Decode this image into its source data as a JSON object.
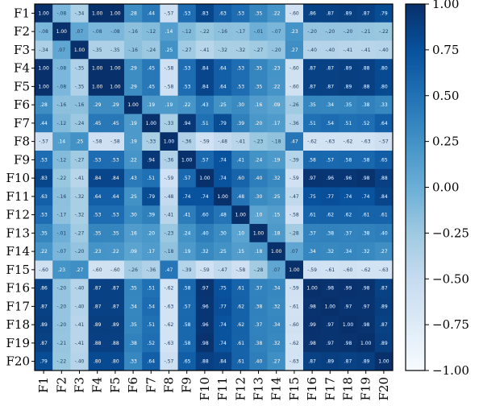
{
  "chart_data": {
    "type": "heatmap",
    "row_labels": [
      "F1",
      "F2",
      "F3",
      "F4",
      "F5",
      "F6",
      "F7",
      "F8",
      "F9",
      "F10",
      "F11",
      "F12",
      "F13",
      "F14",
      "F15",
      "F16",
      "F17",
      "F18",
      "F19",
      "F20"
    ],
    "col_labels": [
      "F1",
      "F2",
      "F3",
      "F4",
      "F5",
      "F6",
      "F7",
      "F8",
      "F9",
      "F10",
      "F11",
      "F12",
      "F13",
      "F14",
      "F15",
      "F16",
      "F17",
      "F18",
      "F19",
      "F20"
    ],
    "values": [
      [
        1.0,
        -0.08,
        -0.34,
        1.0,
        1.0,
        0.28,
        0.44,
        -0.57,
        0.53,
        0.83,
        0.63,
        0.53,
        0.35,
        0.22,
        -0.6,
        0.86,
        0.87,
        0.89,
        0.87,
        0.79
      ],
      [
        -0.08,
        1.0,
        0.07,
        -0.08,
        -0.08,
        -0.16,
        -0.12,
        0.14,
        -0.12,
        -0.22,
        -0.16,
        -0.17,
        -0.01,
        -0.07,
        0.23,
        -0.2,
        -0.2,
        -0.2,
        -0.21,
        -0.22
      ],
      [
        -0.34,
        0.07,
        1.0,
        -0.35,
        -0.35,
        -0.16,
        -0.24,
        0.25,
        -0.27,
        -0.41,
        -0.32,
        -0.32,
        -0.27,
        -0.2,
        0.27,
        -0.4,
        -0.4,
        -0.41,
        -0.41,
        -0.4
      ],
      [
        1.0,
        -0.08,
        -0.35,
        1.0,
        1.0,
        0.29,
        0.45,
        -0.58,
        0.53,
        0.84,
        0.64,
        0.53,
        0.35,
        0.23,
        -0.6,
        0.87,
        0.87,
        0.89,
        0.88,
        0.8
      ],
      [
        1.0,
        -0.08,
        -0.35,
        1.0,
        1.0,
        0.29,
        0.45,
        -0.58,
        0.53,
        0.84,
        0.64,
        0.53,
        0.35,
        0.22,
        -0.6,
        0.87,
        0.87,
        0.89,
        0.88,
        0.8
      ],
      [
        0.28,
        -0.16,
        -0.16,
        0.29,
        0.29,
        1.0,
        0.19,
        0.19,
        0.22,
        0.43,
        0.25,
        0.3,
        0.16,
        0.09,
        -0.26,
        0.35,
        0.34,
        0.35,
        0.38,
        0.33
      ],
      [
        0.44,
        -0.12,
        -0.24,
        0.45,
        0.45,
        0.19,
        1.0,
        -0.33,
        0.94,
        0.51,
        0.79,
        0.39,
        0.2,
        0.17,
        -0.36,
        0.51,
        0.54,
        0.51,
        0.52,
        0.64
      ],
      [
        -0.57,
        0.14,
        0.25,
        -0.58,
        -0.58,
        0.19,
        -0.33,
        1.0,
        -0.36,
        -0.59,
        -0.48,
        -0.41,
        -0.23,
        -0.18,
        0.47,
        -0.62,
        -0.63,
        -0.62,
        -0.63,
        -0.57
      ],
      [
        0.53,
        -0.12,
        -0.27,
        0.53,
        0.53,
        0.22,
        0.94,
        -0.36,
        1.0,
        0.57,
        0.74,
        0.41,
        0.24,
        0.19,
        -0.39,
        0.58,
        0.57,
        0.58,
        0.58,
        0.65
      ],
      [
        0.83,
        -0.22,
        -0.41,
        0.84,
        0.84,
        0.43,
        0.51,
        -0.59,
        0.57,
        1.0,
        0.74,
        0.6,
        0.4,
        0.32,
        -0.59,
        0.97,
        0.96,
        0.96,
        0.98,
        0.88
      ],
      [
        0.63,
        -0.16,
        -0.32,
        0.64,
        0.64,
        0.25,
        0.79,
        -0.48,
        0.74,
        0.74,
        1.0,
        0.48,
        0.3,
        0.25,
        -0.47,
        0.75,
        0.77,
        0.74,
        0.74,
        0.84
      ],
      [
        0.53,
        -0.17,
        -0.32,
        0.53,
        0.53,
        0.3,
        0.39,
        -0.41,
        0.41,
        0.6,
        0.48,
        1.0,
        0.1,
        0.15,
        -0.58,
        0.61,
        0.62,
        0.62,
        0.61,
        0.61
      ],
      [
        0.35,
        -0.01,
        -0.27,
        0.35,
        0.35,
        0.16,
        0.2,
        -0.23,
        0.24,
        0.4,
        0.3,
        0.1,
        1.0,
        0.18,
        -0.28,
        0.37,
        0.38,
        0.37,
        0.38,
        0.4
      ],
      [
        0.22,
        -0.07,
        -0.2,
        0.23,
        0.22,
        0.09,
        0.17,
        -0.18,
        0.19,
        0.32,
        0.25,
        0.15,
        0.18,
        1.0,
        0.07,
        0.34,
        0.32,
        0.34,
        0.32,
        0.27
      ],
      [
        -0.6,
        0.23,
        0.27,
        -0.6,
        -0.6,
        -0.26,
        -0.36,
        0.47,
        -0.39,
        -0.59,
        -0.47,
        -0.58,
        -0.28,
        0.07,
        1.0,
        -0.59,
        -0.61,
        -0.6,
        -0.62,
        -0.63
      ],
      [
        0.86,
        -0.2,
        -0.4,
        0.87,
        0.87,
        0.35,
        0.51,
        -0.62,
        0.58,
        0.97,
        0.75,
        0.61,
        0.37,
        0.34,
        -0.59,
        1.0,
        0.98,
        0.99,
        0.98,
        0.87
      ],
      [
        0.87,
        -0.2,
        -0.4,
        0.87,
        0.87,
        0.34,
        0.54,
        -0.63,
        0.57,
        0.96,
        0.77,
        0.62,
        0.38,
        0.32,
        -0.61,
        0.98,
        1.0,
        0.97,
        0.97,
        0.89
      ],
      [
        0.89,
        -0.2,
        -0.41,
        0.89,
        0.89,
        0.35,
        0.51,
        -0.62,
        0.58,
        0.96,
        0.74,
        0.62,
        0.37,
        0.34,
        -0.6,
        0.99,
        0.97,
        1.0,
        0.98,
        0.87
      ],
      [
        0.87,
        -0.21,
        -0.41,
        0.88,
        0.88,
        0.38,
        0.52,
        -0.63,
        0.58,
        0.98,
        0.74,
        0.61,
        0.38,
        0.32,
        -0.62,
        0.98,
        0.97,
        0.98,
        1.0,
        0.89
      ],
      [
        0.79,
        -0.22,
        -0.4,
        0.8,
        0.8,
        0.33,
        0.64,
        -0.57,
        0.65,
        0.88,
        0.84,
        0.61,
        0.4,
        0.27,
        -0.63,
        0.87,
        0.89,
        0.87,
        0.89,
        1.0
      ]
    ],
    "value_range": [
      -1.0,
      1.0
    ],
    "colormap": "Blues",
    "colorbar": {
      "ticks": [
        1.0,
        0.75,
        0.5,
        0.25,
        0.0,
        -0.25,
        -0.5,
        -0.75,
        -1.0
      ],
      "tick_labels": [
        "1.00",
        "0.75",
        "0.50",
        "0.25",
        "0.00",
        "−0.25",
        "−0.50",
        "−0.75",
        "−1.00"
      ],
      "placement": "right"
    },
    "title": "",
    "xlabel": "",
    "ylabel": "",
    "grid": false
  }
}
